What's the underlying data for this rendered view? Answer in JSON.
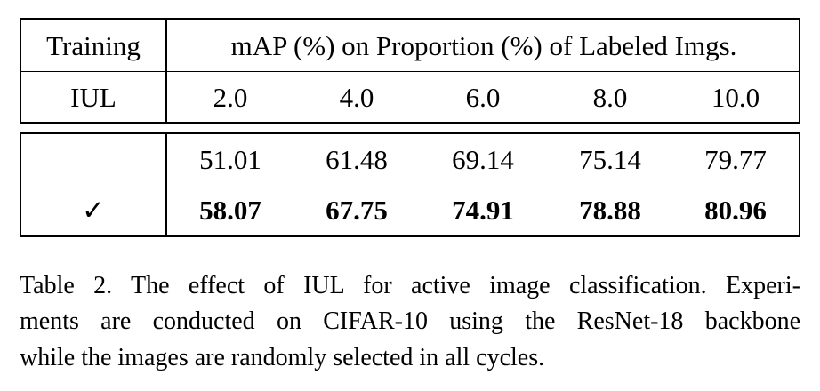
{
  "table": {
    "header": [
      "Training",
      "mAP (%) on Proportion (%) of Labeled Imgs."
    ],
    "subheader": {
      "training": "IUL",
      "proportions": [
        "2.0",
        "4.0",
        "6.0",
        "8.0",
        "10.0"
      ]
    },
    "rows": [
      {
        "values": [
          "51.01",
          "61.48",
          "69.14",
          "75.14",
          "79.77"
        ],
        "bold": false
      },
      {
        "training": "✓",
        "values": [
          "58.07",
          "67.75",
          "74.91",
          "78.88",
          "80.96"
        ],
        "bold": true
      }
    ]
  },
  "caption": {
    "lines": [
      "Table 2. The effect of IUL for active image classification. Experi-",
      "ments are conducted on CIFAR-10 using the ResNet-18 backbone",
      "while the images are randomly selected in all cycles."
    ]
  }
}
